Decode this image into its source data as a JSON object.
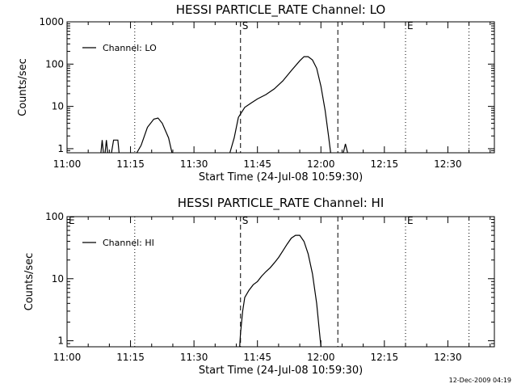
{
  "chart_data": [
    {
      "type": "line",
      "title": "HESSI PARTICLE_RATE Channel: LO",
      "xlabel": "Start Time (24-Jul-08 10:59:30)",
      "ylabel": "Counts/sec",
      "y_scale": "log",
      "xlim": [
        "11:00",
        "12:41"
      ],
      "ylim": [
        0.8,
        1000
      ],
      "x_ticks": [
        "11:00",
        "11:15",
        "11:30",
        "11:45",
        "12:00",
        "12:15",
        "12:30"
      ],
      "y_ticks": [
        "1",
        "10",
        "100",
        "1000"
      ],
      "legend": {
        "position": "top-left",
        "entries": [
          "Channel: LO"
        ]
      },
      "markers": [
        {
          "x": "11:16",
          "style": "dotted",
          "label": ""
        },
        {
          "x": "11:41",
          "style": "dashed",
          "label": "S"
        },
        {
          "x": "12:04",
          "style": "dashed",
          "label": ""
        },
        {
          "x": "12:20",
          "style": "dotted",
          "label": "E"
        },
        {
          "x": "12:35",
          "style": "dotted",
          "label": ""
        }
      ],
      "series": [
        {
          "name": "Channel: LO",
          "segments": [
            [
              [
                "11:08",
                0.8
              ],
              [
                "11:08.3",
                1.6
              ],
              [
                "11:08.6",
                0.8
              ]
            ],
            [
              [
                "11:09",
                0.8
              ],
              [
                "11:09.3",
                1.6
              ],
              [
                "11:09.6",
                0.8
              ]
            ],
            [
              [
                "11:10.5",
                0.8
              ],
              [
                "11:11",
                1.6
              ],
              [
                "11:12",
                1.6
              ],
              [
                "11:12.3",
                0.8
              ]
            ],
            [
              [
                "11:16.5",
                0.8
              ],
              [
                "11:17.5",
                1.2
              ],
              [
                "11:19",
                3.2
              ],
              [
                "11:20.5",
                5.0
              ],
              [
                "11:21.5",
                5.3
              ],
              [
                "11:22.5",
                4.0
              ],
              [
                "11:24",
                1.8
              ],
              [
                "11:24.8",
                0.8
              ]
            ],
            [
              [
                "11:38.5",
                0.8
              ],
              [
                "11:39.5",
                1.8
              ],
              [
                "11:40.5",
                5.5
              ],
              [
                "11:42",
                9.5
              ],
              [
                "11:43.5",
                12
              ],
              [
                "11:45",
                15
              ],
              [
                "11:47",
                19
              ],
              [
                "11:49",
                26
              ],
              [
                "11:51",
                40
              ],
              [
                "11:53",
                70
              ],
              [
                "11:55",
                120
              ],
              [
                "11:56",
                150
              ],
              [
                "11:57",
                150
              ],
              [
                "11:58",
                125
              ],
              [
                "11:59",
                80
              ],
              [
                "12:00",
                30
              ],
              [
                "12:01",
                8
              ],
              [
                "12:01.8",
                2
              ],
              [
                "12:02.3",
                0.8
              ]
            ],
            [
              [
                "12:05.3",
                0.8
              ],
              [
                "12:05.8",
                1.3
              ],
              [
                "12:06.3",
                0.8
              ]
            ]
          ]
        }
      ]
    },
    {
      "type": "line",
      "title": "HESSI PARTICLE_RATE Channel: HI",
      "xlabel": "Start Time (24-Jul-08 10:59:30)",
      "ylabel": "Counts/sec",
      "y_scale": "log",
      "xlim": [
        "11:00",
        "12:41"
      ],
      "ylim": [
        0.8,
        100
      ],
      "x_ticks": [
        "11:00",
        "11:15",
        "11:30",
        "11:45",
        "12:00",
        "12:15",
        "12:30"
      ],
      "y_ticks": [
        "1",
        "10",
        "100"
      ],
      "legend": {
        "position": "top-left",
        "entries": [
          "Channel: HI"
        ]
      },
      "markers": [
        {
          "x": "11:00",
          "style": "dotted",
          "label": "E"
        },
        {
          "x": "11:16",
          "style": "dotted",
          "label": ""
        },
        {
          "x": "11:41",
          "style": "dashed",
          "label": "S"
        },
        {
          "x": "12:04",
          "style": "dashed",
          "label": ""
        },
        {
          "x": "12:20",
          "style": "dotted",
          "label": "E"
        },
        {
          "x": "12:35",
          "style": "dotted",
          "label": ""
        }
      ],
      "series": [
        {
          "name": "Channel: HI",
          "segments": [
            [
              [
                "11:40.8",
                0.8
              ],
              [
                "11:41",
                1.3
              ],
              [
                "11:41.5",
                3
              ],
              [
                "11:42",
                5
              ],
              [
                "11:43",
                6.5
              ],
              [
                "11:44",
                8
              ],
              [
                "11:45",
                9
              ],
              [
                "11:46",
                11
              ],
              [
                "11:47",
                13
              ],
              [
                "11:48",
                15
              ],
              [
                "11:49",
                18
              ],
              [
                "11:50",
                22
              ],
              [
                "11:51",
                28
              ],
              [
                "11:52",
                36
              ],
              [
                "11:53",
                45
              ],
              [
                "11:54",
                50
              ],
              [
                "11:55",
                50
              ],
              [
                "11:56",
                40
              ],
              [
                "11:57",
                25
              ],
              [
                "11:58",
                12
              ],
              [
                "11:59",
                4
              ],
              [
                "11:59.6",
                1.5
              ],
              [
                "12:00",
                0.8
              ]
            ]
          ]
        }
      ]
    }
  ],
  "footer": {
    "stamp": "12-Dec-2009 04:19"
  }
}
